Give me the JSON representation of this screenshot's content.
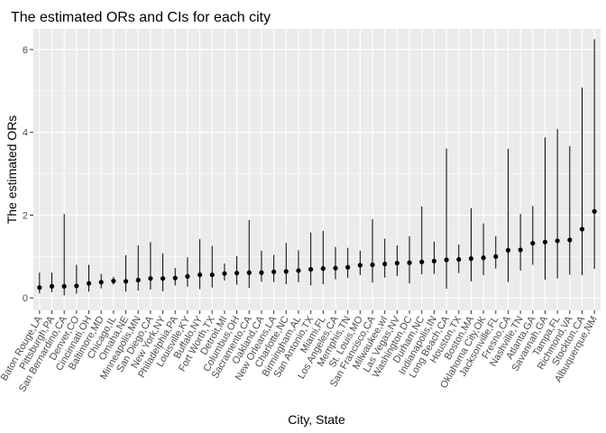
{
  "chart_data": {
    "type": "errorbar",
    "title": "The estimated ORs and CIs for each city",
    "xlabel": "City, State",
    "ylabel": "The estimated ORs",
    "ylim": [
      -0.3,
      6.5
    ],
    "yticks": [
      0,
      2,
      4,
      6
    ],
    "grid": true,
    "legend": "none",
    "colors": {
      "panel": "#ebebeb",
      "grid": "#ffffff",
      "point": "#000000",
      "errorbar": "#000000",
      "tick_text": "#4d4d4d"
    },
    "categories": [
      "Baton Rouge,LA",
      "Pittsburgh,PA",
      "San Bernardino,CA",
      "Denver,CO",
      "Cincinnati,OH",
      "Baltimore,MD",
      "Chicago,IL",
      "Omaha,NE",
      "Minneapolis,MN",
      "San Diego,CA",
      "New York,NY",
      "Philadelphia,PA",
      "Louisville,KY",
      "Buffalo,NY",
      "Fort Worth,TX",
      "Detroit,MI",
      "Columbus,OH",
      "Sacramento,CA",
      "Oakland,CA",
      "New Orleans,LA",
      "Charlotte,NC",
      "Birmingham,AL",
      "San Antonio,TX",
      "Miami,FL",
      "Los Angeles,CA",
      "Memphis,TN",
      "St. Louis,MO",
      "San Francisco,CA",
      "Milwaukee,wI",
      "Las Vegas,NV",
      "Washington,DC",
      "Durham,NC",
      "Indianapolis,IN",
      "Long Beach,CA",
      "Houston,TX",
      "Boston,MA",
      "Oklahoma City,OK",
      "Jacksonville,FL",
      "Fresno,CA",
      "Nashville,TN",
      "Atlanta,GA",
      "Savannah,GA",
      "Tampa,FL",
      "Richmond,VA",
      "Stockton,CA",
      "Albuquerque,NM"
    ],
    "estimates": [
      0.25,
      0.28,
      0.28,
      0.29,
      0.35,
      0.38,
      0.41,
      0.4,
      0.43,
      0.47,
      0.47,
      0.48,
      0.52,
      0.56,
      0.56,
      0.59,
      0.6,
      0.61,
      0.61,
      0.63,
      0.64,
      0.66,
      0.69,
      0.71,
      0.72,
      0.74,
      0.79,
      0.8,
      0.82,
      0.84,
      0.85,
      0.87,
      0.89,
      0.92,
      0.93,
      0.95,
      0.97,
      1.0,
      1.15,
      1.16,
      1.32,
      1.35,
      1.38,
      1.4,
      1.66,
      2.09
    ],
    "ci_lower": [
      0.11,
      0.14,
      0.06,
      0.1,
      0.15,
      0.23,
      0.32,
      0.15,
      0.18,
      0.2,
      0.16,
      0.3,
      0.27,
      0.21,
      0.25,
      0.42,
      0.32,
      0.24,
      0.39,
      0.38,
      0.33,
      0.38,
      0.3,
      0.33,
      0.45,
      0.48,
      0.55,
      0.37,
      0.49,
      0.53,
      0.35,
      0.57,
      0.58,
      0.22,
      0.6,
      0.4,
      0.55,
      0.71,
      0.38,
      0.66,
      0.8,
      0.44,
      0.47,
      0.56,
      0.55,
      0.7
    ],
    "ci_upper": [
      0.61,
      0.61,
      2.03,
      0.8,
      0.8,
      0.58,
      0.51,
      1.03,
      1.27,
      1.35,
      1.08,
      0.72,
      0.98,
      1.42,
      1.26,
      0.83,
      1.01,
      1.88,
      1.14,
      1.04,
      1.33,
      1.15,
      1.58,
      1.62,
      1.23,
      1.21,
      1.14,
      1.9,
      1.43,
      1.27,
      1.49,
      2.21,
      1.36,
      3.61,
      1.29,
      2.17,
      1.8,
      1.49,
      3.6,
      2.03,
      2.22,
      3.88,
      4.08,
      3.67,
      5.08,
      6.25
    ]
  }
}
